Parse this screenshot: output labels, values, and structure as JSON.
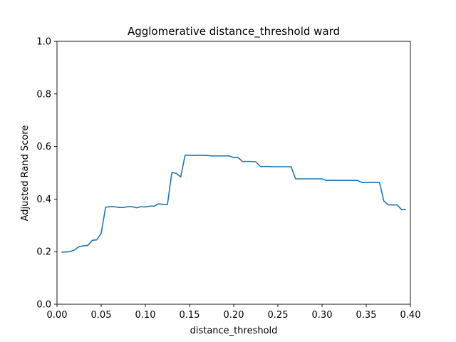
{
  "chart_data": {
    "type": "line",
    "title": "Agglomerative distance_threshold ward",
    "xlabel": "distance_threshold",
    "ylabel": "Adjusted Rand Score",
    "xlim": [
      0.0,
      0.4
    ],
    "ylim": [
      0.0,
      1.0
    ],
    "xticks": [
      "0.00",
      "0.05",
      "0.10",
      "0.15",
      "0.20",
      "0.25",
      "0.30",
      "0.35",
      "0.40"
    ],
    "yticks": [
      "0.0",
      "0.2",
      "0.4",
      "0.6",
      "0.8",
      "1.0"
    ],
    "grid": false,
    "series": [
      {
        "color": "#1f77b4",
        "x": [
          0.005,
          0.01,
          0.015,
          0.02,
          0.025,
          0.03,
          0.035,
          0.04,
          0.045,
          0.05,
          0.055,
          0.06,
          0.065,
          0.07,
          0.075,
          0.08,
          0.085,
          0.09,
          0.095,
          0.1,
          0.105,
          0.11,
          0.115,
          0.12,
          0.125,
          0.13,
          0.135,
          0.14,
          0.145,
          0.15,
          0.155,
          0.16,
          0.165,
          0.17,
          0.175,
          0.18,
          0.185,
          0.19,
          0.195,
          0.2,
          0.205,
          0.21,
          0.215,
          0.22,
          0.225,
          0.23,
          0.235,
          0.24,
          0.245,
          0.25,
          0.255,
          0.26,
          0.265,
          0.27,
          0.275,
          0.28,
          0.285,
          0.29,
          0.295,
          0.3,
          0.305,
          0.31,
          0.315,
          0.32,
          0.325,
          0.33,
          0.335,
          0.34,
          0.345,
          0.35,
          0.355,
          0.36,
          0.365,
          0.37,
          0.375,
          0.38,
          0.385,
          0.39,
          0.395
        ],
        "y": [
          0.198,
          0.199,
          0.2,
          0.207,
          0.219,
          0.222,
          0.224,
          0.243,
          0.245,
          0.27,
          0.369,
          0.371,
          0.371,
          0.368,
          0.368,
          0.371,
          0.371,
          0.367,
          0.371,
          0.37,
          0.373,
          0.373,
          0.382,
          0.38,
          0.379,
          0.501,
          0.498,
          0.484,
          0.567,
          0.567,
          0.566,
          0.567,
          0.566,
          0.566,
          0.564,
          0.564,
          0.564,
          0.564,
          0.564,
          0.558,
          0.558,
          0.543,
          0.543,
          0.543,
          0.542,
          0.524,
          0.524,
          0.524,
          0.523,
          0.523,
          0.523,
          0.523,
          0.523,
          0.477,
          0.477,
          0.477,
          0.477,
          0.477,
          0.477,
          0.477,
          0.471,
          0.471,
          0.471,
          0.471,
          0.471,
          0.471,
          0.471,
          0.471,
          0.463,
          0.463,
          0.463,
          0.463,
          0.463,
          0.392,
          0.378,
          0.378,
          0.378,
          0.36,
          0.36
        ]
      }
    ]
  }
}
